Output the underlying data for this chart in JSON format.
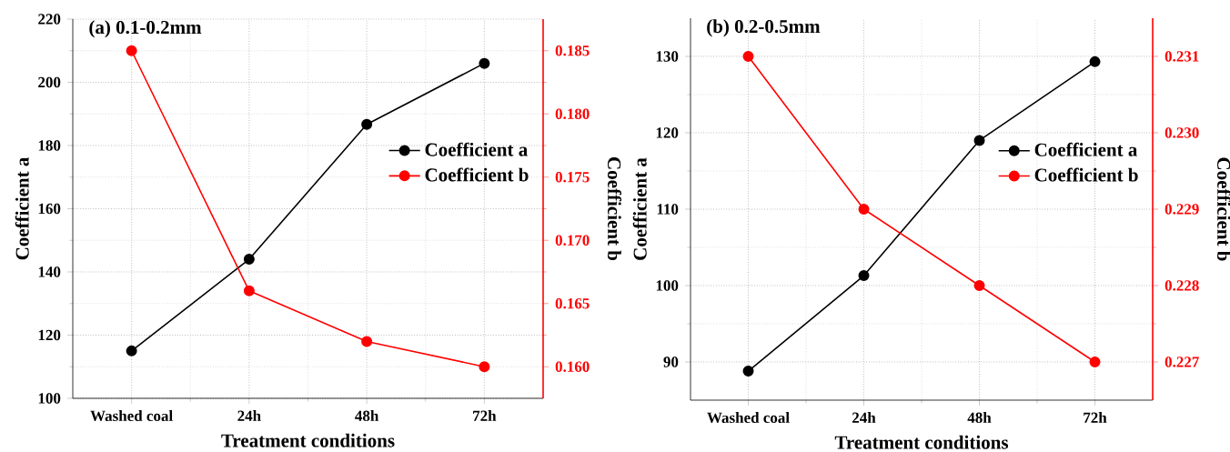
{
  "chart_data": [
    {
      "type": "line",
      "title": "(a) 0.1-0.2mm",
      "xlabel": "Treatment conditions",
      "ylabel": "Coefficient a",
      "y2label": "Coefficient b",
      "categories": [
        "Washed coal",
        "24h",
        "48h",
        "72h"
      ],
      "series": [
        {
          "name": "Coefficient a",
          "color": "#000000",
          "values": [
            115,
            144,
            186.7,
            206
          ]
        },
        {
          "name": "Coefficient b",
          "color": "#ff0000",
          "axis": "y2",
          "values": [
            0.185,
            0.166,
            0.162,
            0.16
          ]
        }
      ],
      "ylim": [
        100,
        220
      ],
      "yticks": [
        100,
        120,
        140,
        160,
        180,
        200,
        220
      ],
      "y2lim": [
        0.1575,
        0.1875
      ],
      "y2ticks": [
        {
          "value": 0.16,
          "label": "0.160"
        },
        0.165,
        {
          "value": 0.17,
          "label": "0.170"
        },
        0.175,
        {
          "value": 0.18,
          "label": "0.180"
        },
        0.185
      ],
      "grid": true,
      "legend": "right",
      "marker": "circle",
      "line_style": "solid"
    },
    {
      "type": "line",
      "title": "(b) 0.2-0.5mm",
      "xlabel": "Treatment conditions",
      "ylabel": "Coefficient a",
      "y2label": "Coefficient b",
      "categories": [
        "Washed coal",
        "24h",
        "48h",
        "72h"
      ],
      "series": [
        {
          "name": "Coefficient a",
          "color": "#000000",
          "values": [
            88.8,
            101.3,
            119,
            129.3
          ]
        },
        {
          "name": "Coefficient b",
          "color": "#ff0000",
          "axis": "y2",
          "values": [
            0.231,
            0.229,
            0.228,
            0.227
          ]
        }
      ],
      "ylim": [
        85,
        135
      ],
      "yticks": [
        90,
        100,
        110,
        120,
        130
      ],
      "y2lim": [
        0.2265,
        0.2315
      ],
      "y2ticks": [
        0.227,
        0.228,
        0.229,
        {
          "value": 0.23,
          "label": "0.230"
        },
        0.231
      ],
      "grid": true,
      "legend": "right",
      "marker": "circle",
      "line_style": "solid"
    }
  ]
}
